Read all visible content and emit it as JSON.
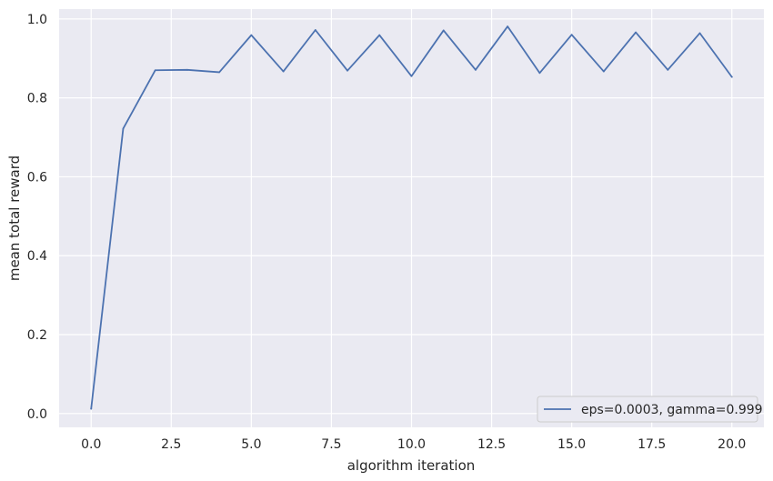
{
  "chart_data": {
    "type": "line",
    "xlabel": "algorithm iteration",
    "ylabel": "mean total reward",
    "xlim": [
      -1.0,
      21.0
    ],
    "ylim": [
      -0.035,
      1.025
    ],
    "xticks": [
      0.0,
      2.5,
      5.0,
      7.5,
      10.0,
      12.5,
      15.0,
      17.5,
      20.0
    ],
    "xtick_labels": [
      "0.0",
      "2.5",
      "5.0",
      "7.5",
      "10.0",
      "12.5",
      "15.0",
      "17.5",
      "20.0"
    ],
    "yticks": [
      0.0,
      0.2,
      0.4,
      0.6,
      0.8,
      1.0
    ],
    "ytick_labels": [
      "0.0",
      "0.2",
      "0.4",
      "0.6",
      "0.8",
      "1.0"
    ],
    "grid": true,
    "legend_position": "lower-right",
    "series": [
      {
        "name": "eps=0.0003, gamma=0.999",
        "color": "#4c72b0",
        "x": [
          0,
          1,
          2,
          3,
          4,
          5,
          6,
          7,
          8,
          9,
          10,
          11,
          12,
          13,
          14,
          15,
          16,
          17,
          18,
          19,
          20
        ],
        "y": [
          0.012,
          0.722,
          0.87,
          0.871,
          0.865,
          0.959,
          0.867,
          0.972,
          0.869,
          0.959,
          0.855,
          0.971,
          0.871,
          0.981,
          0.863,
          0.96,
          0.867,
          0.966,
          0.871,
          0.964,
          0.853
        ]
      }
    ]
  }
}
